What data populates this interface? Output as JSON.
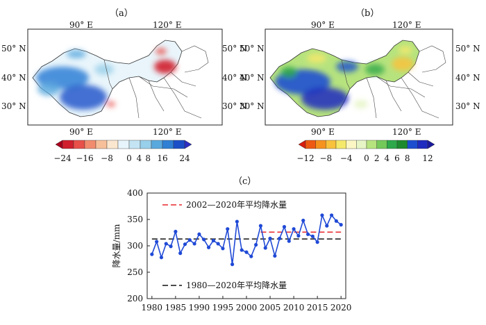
{
  "panels": {
    "a": {
      "label": "（a）",
      "lon_labels": [
        "90° E",
        "120° E"
      ],
      "lat_labels": [
        "50° N",
        "40° N",
        "30° N"
      ],
      "colorbar": {
        "ticks": [
          "−24",
          "−16",
          "−8",
          "0",
          "4",
          "8",
          "16",
          "24"
        ],
        "colors": [
          "#a8001c",
          "#d0202e",
          "#e8504a",
          "#f28c6e",
          "#f7c09a",
          "#fbe6cf",
          "#e8f4fb",
          "#c4e4f4",
          "#98cfea",
          "#5aa9de",
          "#2f7fd4",
          "#1b4fc8",
          "#2d2fc2"
        ]
      }
    },
    "b": {
      "label": "（b）",
      "lon_labels": [
        "90° E",
        "120° E"
      ],
      "lat_labels": [
        "50° N",
        "40° N",
        "30° N"
      ],
      "colorbar": {
        "ticks": [
          "−12",
          "−8",
          "−4",
          "0",
          "2",
          "4",
          "6",
          "8",
          "12"
        ],
        "colors": [
          "#d91c0f",
          "#ee5a13",
          "#f6921e",
          "#f9c23c",
          "#f5e96b",
          "#fbf6c4",
          "#e7f5c6",
          "#b6e37e",
          "#74c95a",
          "#2ea84a",
          "#1e8a2e",
          "#1c4fd0",
          "#1f2cc0",
          "#1a1a9e"
        ]
      }
    },
    "c": {
      "label": "（c）"
    }
  },
  "chart_data": {
    "type": "line",
    "title": "",
    "xlabel": "",
    "ylabel": "降水量/mm",
    "xlim": [
      1979,
      2021
    ],
    "ylim": [
      200,
      400
    ],
    "xticks": [
      1980,
      1985,
      1990,
      1995,
      2000,
      2005,
      2010,
      2015,
      2020
    ],
    "yticks": [
      200,
      250,
      300,
      350,
      400
    ],
    "series": [
      {
        "name": "",
        "color": "#1f49d6",
        "x": [
          1980,
          1981,
          1982,
          1983,
          1984,
          1985,
          1986,
          1987,
          1988,
          1989,
          1990,
          1991,
          1992,
          1993,
          1994,
          1995,
          1996,
          1997,
          1998,
          1999,
          2000,
          2001,
          2002,
          2003,
          2004,
          2005,
          2006,
          2007,
          2008,
          2009,
          2010,
          2011,
          2012,
          2013,
          2014,
          2015,
          2016,
          2017,
          2018,
          2019,
          2020
        ],
        "y": [
          284,
          308,
          278,
          304,
          299,
          327,
          286,
          303,
          311,
          304,
          322,
          312,
          297,
          310,
          304,
          295,
          332,
          265,
          346,
          292,
          288,
          280,
          302,
          338,
          296,
          314,
          281,
          314,
          336,
          309,
          332,
          319,
          348,
          322,
          318,
          307,
          358,
          338,
          358,
          347,
          340
        ]
      }
    ],
    "reference_lines": [
      {
        "name": "2002—2020年平均降水量",
        "color": "#e8262b",
        "x": [
          2003,
          2020
        ],
        "y": 326
      },
      {
        "name": "1980—2020年平均降水量",
        "color": "#111111",
        "x": [
          1980,
          2020
        ],
        "y": 313
      }
    ]
  }
}
